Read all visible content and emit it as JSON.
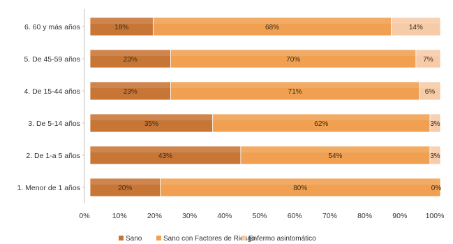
{
  "chart_data": {
    "type": "bar",
    "orientation": "horizontal",
    "stacked": "percent",
    "categories": [
      "6. 60 y más años",
      "5. De 45-59 años",
      "4. De 15-44 años",
      "3. De 5-14 años",
      "2. De 1-a 5 años",
      "1. Menor de 1 años"
    ],
    "series": [
      {
        "name": "Sano",
        "values": [
          18,
          23,
          23,
          35,
          43,
          20
        ],
        "labels": [
          "18%",
          "23%",
          "23%",
          "35%",
          "43%",
          "20%"
        ],
        "color": "#c87636"
      },
      {
        "name": "Sano con Factores de Riesgo",
        "values": [
          68,
          70,
          71,
          62,
          54,
          80
        ],
        "labels": [
          "68%",
          "70%",
          "71%",
          "62%",
          "54%",
          "80%"
        ],
        "color": "#f0a050"
      },
      {
        "name": "Enfermo asintomático",
        "values": [
          14,
          7,
          6,
          3,
          3,
          0
        ],
        "labels": [
          "14%",
          "7%",
          "6%",
          "3%",
          "3%",
          "0%"
        ],
        "color": "#f6cba8"
      }
    ],
    "xlim": [
      0,
      100
    ],
    "x_ticks": [
      "0%",
      "10%",
      "20%",
      "30%",
      "40%",
      "50%",
      "60%",
      "70%",
      "80%",
      "90%",
      "100%"
    ],
    "grid": false,
    "legend": "bottom"
  }
}
